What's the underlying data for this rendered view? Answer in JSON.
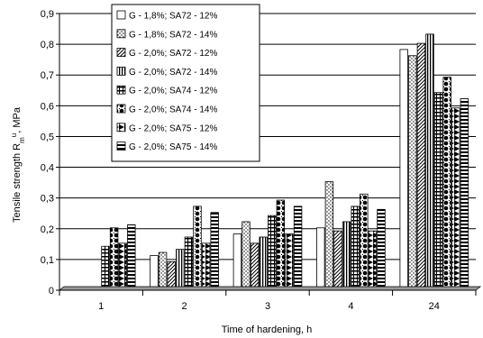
{
  "chart_data": {
    "type": "bar",
    "xlabel": "Time of hardening, h",
    "ylabel_main": "Tensile strength R",
    "ylabel_sub": "m",
    "ylabel_sup": "u",
    "ylabel_unit": ", MPa",
    "categories": [
      "1",
      "2",
      "3",
      "4",
      "24"
    ],
    "ylim": [
      0,
      0.9
    ],
    "yticks": [
      "0",
      "0,1",
      "0,2",
      "0,3",
      "0,4",
      "0,5",
      "0,6",
      "0,7",
      "0,8",
      "0,9"
    ],
    "grid": true,
    "legend_position": "top-left",
    "series": [
      {
        "name": "G - 1,8%; SA72 - 12%",
        "pattern": "blank",
        "values": [
          0.0,
          0.11,
          0.18,
          0.2,
          0.78
        ]
      },
      {
        "name": "G - 1,8%; SA72 - 14%",
        "pattern": "dots",
        "values": [
          0.0,
          0.12,
          0.22,
          0.35,
          0.76
        ]
      },
      {
        "name": "G - 2,0%; SA72 - 12%",
        "pattern": "diagonal",
        "values": [
          0.0,
          0.09,
          0.15,
          0.19,
          0.8
        ]
      },
      {
        "name": "G - 2,0%; SA72 - 14%",
        "pattern": "vertical",
        "values": [
          0.0,
          0.13,
          0.17,
          0.22,
          0.83
        ]
      },
      {
        "name": "G - 2,0%; SA74 - 12%",
        "pattern": "horizontal",
        "values": [
          0.14,
          0.17,
          0.24,
          0.27,
          0.64
        ]
      },
      {
        "name": "G - 2,0%; SA74 - 14%",
        "pattern": "checker",
        "values": [
          0.2,
          0.27,
          0.29,
          0.31,
          0.69
        ]
      },
      {
        "name": "G - 2,0%; SA75 - 12%",
        "pattern": "diamond",
        "values": [
          0.15,
          0.15,
          0.18,
          0.19,
          0.59
        ]
      },
      {
        "name": "G - 2,0%; SA75 - 14%",
        "pattern": "hbands",
        "values": [
          0.21,
          0.25,
          0.27,
          0.26,
          0.62
        ]
      }
    ]
  }
}
